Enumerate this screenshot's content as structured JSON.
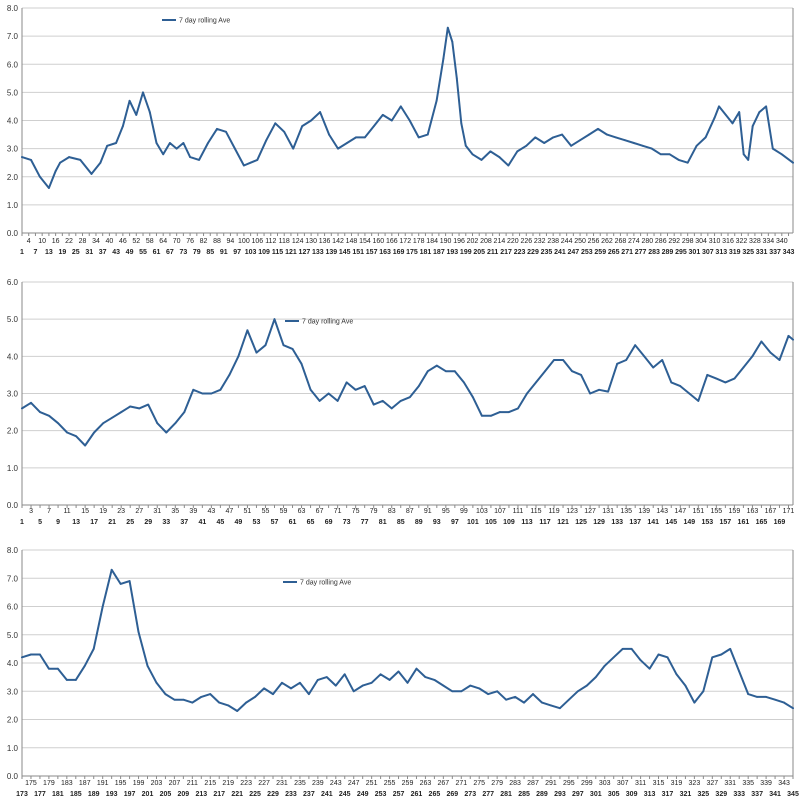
{
  "colors": {
    "series": "#2e5f94",
    "grid": "#cfcfcf",
    "axis": "#8a8a8a"
  },
  "chart_data": [
    {
      "type": "line",
      "title": "",
      "xlabel": "",
      "ylabel": "",
      "ylim": [
        0,
        8
      ],
      "yticks": [
        "0.0",
        "1.0",
        "2.0",
        "3.0",
        "4.0",
        "5.0",
        "6.0",
        "7.0",
        "8.0"
      ],
      "grid": true,
      "legend": {
        "position": "top-left",
        "entries": [
          "7 day rolling Ave"
        ]
      },
      "xlim": [
        1,
        345
      ],
      "xticks_top": [
        4,
        10,
        16,
        22,
        28,
        34,
        40,
        46,
        52,
        58,
        64,
        70,
        76,
        82,
        88,
        94,
        100,
        106,
        112,
        118,
        124,
        130,
        136,
        142,
        148,
        154,
        160,
        166,
        172,
        178,
        184,
        190,
        196,
        202,
        208,
        214,
        220,
        226,
        232,
        238,
        244,
        250,
        256,
        262,
        268,
        274,
        280,
        286,
        292,
        298,
        304,
        310,
        316,
        322,
        328,
        334,
        340
      ],
      "xticks_bottom": [
        1,
        7,
        13,
        19,
        25,
        31,
        37,
        43,
        49,
        55,
        61,
        67,
        73,
        79,
        85,
        91,
        97,
        103,
        109,
        115,
        121,
        127,
        133,
        139,
        145,
        151,
        157,
        163,
        169,
        175,
        181,
        187,
        193,
        199,
        205,
        211,
        217,
        223,
        229,
        235,
        241,
        247,
        253,
        259,
        265,
        271,
        277,
        283,
        289,
        295,
        301,
        307,
        313,
        319,
        325,
        331,
        337,
        343
      ],
      "series": [
        {
          "name": "7 day rolling Ave",
          "x": [
            1,
            5,
            9,
            13,
            16,
            18,
            22,
            27,
            32,
            36,
            39,
            43,
            46,
            49,
            52,
            55,
            58,
            61,
            64,
            67,
            70,
            73,
            76,
            80,
            84,
            88,
            92,
            96,
            100,
            103,
            106,
            110,
            114,
            118,
            122,
            126,
            130,
            134,
            138,
            142,
            146,
            150,
            154,
            158,
            162,
            166,
            170,
            174,
            178,
            182,
            186,
            189,
            191,
            193,
            195,
            197,
            199,
            202,
            206,
            210,
            214,
            218,
            222,
            226,
            230,
            234,
            238,
            242,
            246,
            250,
            254,
            258,
            262,
            266,
            270,
            274,
            278,
            282,
            286,
            290,
            294,
            298,
            302,
            306,
            310,
            312,
            315,
            318,
            321,
            323,
            325,
            327,
            330,
            333,
            336,
            340,
            345
          ],
          "y": [
            2.7,
            2.6,
            2.0,
            1.6,
            2.2,
            2.5,
            2.7,
            2.6,
            2.1,
            2.5,
            3.1,
            3.2,
            3.8,
            4.7,
            4.2,
            5.0,
            4.3,
            3.2,
            2.8,
            3.2,
            3.0,
            3.2,
            2.7,
            2.6,
            3.2,
            3.7,
            3.6,
            3.0,
            2.4,
            2.5,
            2.6,
            3.3,
            3.9,
            3.6,
            3.0,
            3.8,
            4.0,
            4.3,
            3.5,
            3.0,
            3.2,
            3.4,
            3.4,
            3.8,
            4.2,
            4.0,
            4.5,
            4.0,
            3.4,
            3.5,
            4.7,
            6.2,
            7.3,
            6.8,
            5.5,
            3.9,
            3.1,
            2.8,
            2.6,
            2.9,
            2.7,
            2.4,
            2.9,
            3.1,
            3.4,
            3.2,
            3.4,
            3.5,
            3.1,
            3.3,
            3.5,
            3.7,
            3.5,
            3.4,
            3.3,
            3.2,
            3.1,
            3.0,
            2.8,
            2.8,
            2.6,
            2.5,
            3.1,
            3.4,
            4.1,
            4.5,
            4.2,
            3.9,
            4.3,
            2.8,
            2.6,
            3.8,
            4.3,
            4.5,
            3.0,
            2.8,
            2.5
          ]
        }
      ]
    },
    {
      "type": "line",
      "title": "",
      "xlabel": "",
      "ylabel": "",
      "ylim": [
        0,
        6
      ],
      "yticks": [
        "0.0",
        "1.0",
        "2.0",
        "3.0",
        "4.0",
        "5.0",
        "6.0"
      ],
      "grid": true,
      "legend": {
        "position": "top-center",
        "entries": [
          "7 day rolling Ave"
        ]
      },
      "xlim": [
        1,
        172
      ],
      "xticks_top": [
        3,
        7,
        11,
        15,
        19,
        23,
        27,
        31,
        35,
        39,
        43,
        47,
        51,
        55,
        59,
        63,
        67,
        71,
        75,
        79,
        83,
        87,
        91,
        95,
        99,
        103,
        107,
        111,
        115,
        119,
        123,
        127,
        131,
        135,
        139,
        143,
        147,
        151,
        155,
        159,
        163,
        167,
        171
      ],
      "xticks_bottom": [
        1,
        5,
        9,
        13,
        17,
        21,
        25,
        29,
        33,
        37,
        41,
        45,
        49,
        53,
        57,
        61,
        65,
        69,
        73,
        77,
        81,
        85,
        89,
        93,
        97,
        101,
        105,
        109,
        113,
        117,
        121,
        125,
        129,
        133,
        137,
        141,
        145,
        149,
        153,
        157,
        161,
        165,
        169
      ],
      "series": [
        {
          "name": "7 day rolling Ave",
          "x": [
            1,
            3,
            5,
            7,
            9,
            11,
            13,
            15,
            17,
            19,
            21,
            23,
            25,
            27,
            29,
            31,
            33,
            35,
            37,
            39,
            41,
            43,
            45,
            47,
            49,
            51,
            53,
            55,
            57,
            59,
            61,
            63,
            65,
            67,
            69,
            71,
            73,
            75,
            77,
            79,
            81,
            83,
            85,
            87,
            89,
            91,
            93,
            95,
            97,
            99,
            101,
            103,
            105,
            107,
            109,
            111,
            113,
            115,
            117,
            119,
            121,
            123,
            125,
            127,
            129,
            131,
            133,
            135,
            137,
            139,
            141,
            143,
            145,
            147,
            149,
            151,
            153,
            155,
            157,
            159,
            161,
            163,
            165,
            167,
            169,
            171,
            172
          ],
          "y": [
            2.6,
            2.75,
            2.5,
            2.4,
            2.2,
            1.95,
            1.85,
            1.6,
            1.95,
            2.2,
            2.35,
            2.5,
            2.65,
            2.6,
            2.7,
            2.2,
            1.95,
            2.2,
            2.5,
            3.1,
            3.0,
            3.0,
            3.1,
            3.5,
            4.0,
            4.7,
            4.1,
            4.3,
            5.0,
            4.3,
            4.2,
            3.8,
            3.1,
            2.8,
            3.0,
            2.8,
            3.3,
            3.1,
            3.2,
            2.7,
            2.8,
            2.6,
            2.8,
            2.9,
            3.2,
            3.6,
            3.75,
            3.6,
            3.6,
            3.3,
            2.9,
            2.4,
            2.4,
            2.5,
            2.5,
            2.6,
            3.0,
            3.3,
            3.6,
            3.9,
            3.9,
            3.6,
            3.5,
            3.0,
            3.1,
            3.05,
            3.8,
            3.9,
            4.3,
            4.0,
            3.7,
            3.9,
            3.3,
            3.2,
            3.0,
            2.8,
            3.5,
            3.4,
            3.3,
            3.4,
            3.7,
            4.0,
            4.4,
            4.1,
            3.9,
            4.55,
            4.45
          ]
        }
      ]
    },
    {
      "type": "line",
      "title": "",
      "xlabel": "",
      "ylabel": "",
      "ylim": [
        0,
        8
      ],
      "yticks": [
        "0.0",
        "1.0",
        "2.0",
        "3.0",
        "4.0",
        "5.0",
        "6.0",
        "7.0",
        "8.0"
      ],
      "grid": true,
      "legend": {
        "position": "top-center",
        "entries": [
          "7 day rolling Ave"
        ]
      },
      "xlim": [
        173,
        345
      ],
      "xticks_top": [
        175,
        179,
        183,
        187,
        191,
        195,
        199,
        203,
        207,
        211,
        215,
        219,
        223,
        227,
        231,
        235,
        239,
        243,
        247,
        251,
        255,
        259,
        263,
        267,
        271,
        275,
        279,
        283,
        287,
        291,
        295,
        299,
        303,
        307,
        311,
        315,
        319,
        323,
        327,
        331,
        335,
        339,
        343
      ],
      "xticks_bottom": [
        173,
        177,
        181,
        185,
        189,
        193,
        197,
        201,
        205,
        209,
        213,
        217,
        221,
        225,
        229,
        233,
        237,
        241,
        245,
        249,
        253,
        257,
        261,
        265,
        269,
        273,
        277,
        281,
        285,
        289,
        293,
        297,
        301,
        305,
        309,
        313,
        317,
        321,
        325,
        329,
        333,
        337,
        341,
        345
      ],
      "series": [
        {
          "name": "7 day rolling Ave",
          "x": [
            173,
            175,
            177,
            179,
            181,
            183,
            185,
            187,
            189,
            191,
            193,
            195,
            197,
            199,
            201,
            203,
            205,
            207,
            209,
            211,
            213,
            215,
            217,
            219,
            221,
            223,
            225,
            227,
            229,
            231,
            233,
            235,
            237,
            239,
            241,
            243,
            245,
            247,
            249,
            251,
            253,
            255,
            257,
            259,
            261,
            263,
            265,
            267,
            269,
            271,
            273,
            275,
            277,
            279,
            281,
            283,
            285,
            287,
            289,
            291,
            293,
            295,
            297,
            299,
            301,
            303,
            305,
            307,
            309,
            311,
            313,
            315,
            317,
            319,
            321,
            323,
            325,
            327,
            329,
            331,
            333,
            335,
            337,
            339,
            341,
            343,
            345
          ],
          "y": [
            4.2,
            4.3,
            4.3,
            3.8,
            3.8,
            3.4,
            3.4,
            3.9,
            4.5,
            6.0,
            7.3,
            6.8,
            6.9,
            5.1,
            3.9,
            3.3,
            2.9,
            2.7,
            2.7,
            2.6,
            2.8,
            2.9,
            2.6,
            2.5,
            2.3,
            2.6,
            2.8,
            3.1,
            2.9,
            3.3,
            3.1,
            3.3,
            2.9,
            3.4,
            3.5,
            3.2,
            3.6,
            3.0,
            3.2,
            3.3,
            3.6,
            3.4,
            3.7,
            3.3,
            3.8,
            3.5,
            3.4,
            3.2,
            3.0,
            3.0,
            3.2,
            3.1,
            2.9,
            3.0,
            2.7,
            2.8,
            2.6,
            2.9,
            2.6,
            2.5,
            2.4,
            2.7,
            3.0,
            3.2,
            3.5,
            3.9,
            4.2,
            4.5,
            4.5,
            4.1,
            3.8,
            4.3,
            4.2,
            3.6,
            3.2,
            2.6,
            3.0,
            4.2,
            4.3,
            4.5,
            3.7,
            2.9,
            2.8,
            2.8,
            2.7,
            2.6,
            2.4
          ]
        }
      ]
    }
  ]
}
